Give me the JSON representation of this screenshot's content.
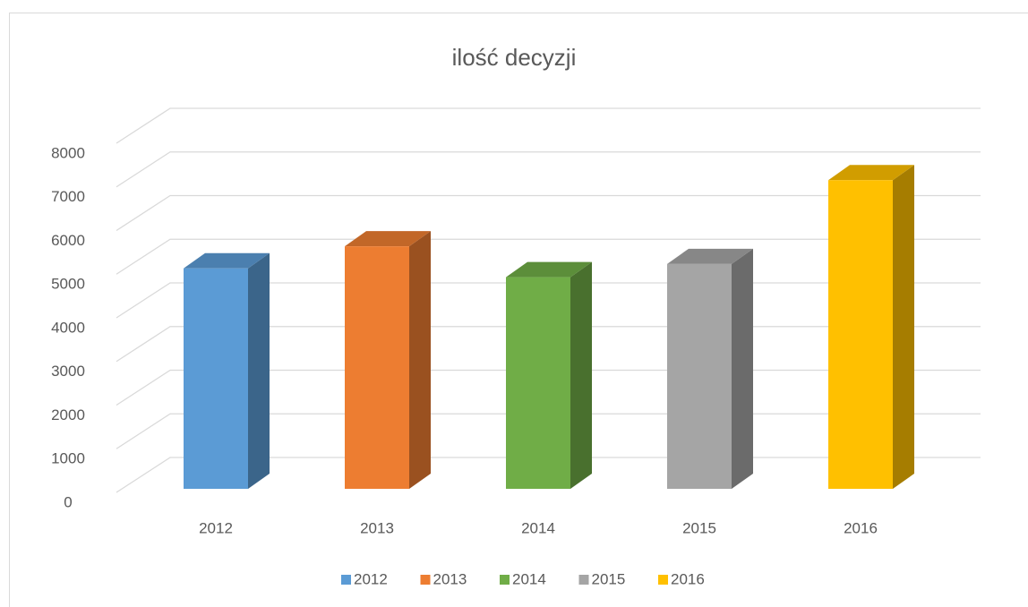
{
  "chart_data": {
    "type": "bar3d",
    "title": "ilość decyzji",
    "categories": [
      "2012",
      "2013",
      "2014",
      "2015",
      "2016"
    ],
    "values": [
      5000,
      5500,
      4800,
      5100,
      7000
    ],
    "colors": [
      "#5b9bd5",
      "#ed7d31",
      "#70ad47",
      "#a5a5a5",
      "#ffc000"
    ],
    "ylim": [
      0,
      8000
    ],
    "yticks": [
      0,
      1000,
      2000,
      3000,
      4000,
      5000,
      6000,
      7000,
      8000
    ],
    "grid": true,
    "legend": "bottom"
  }
}
